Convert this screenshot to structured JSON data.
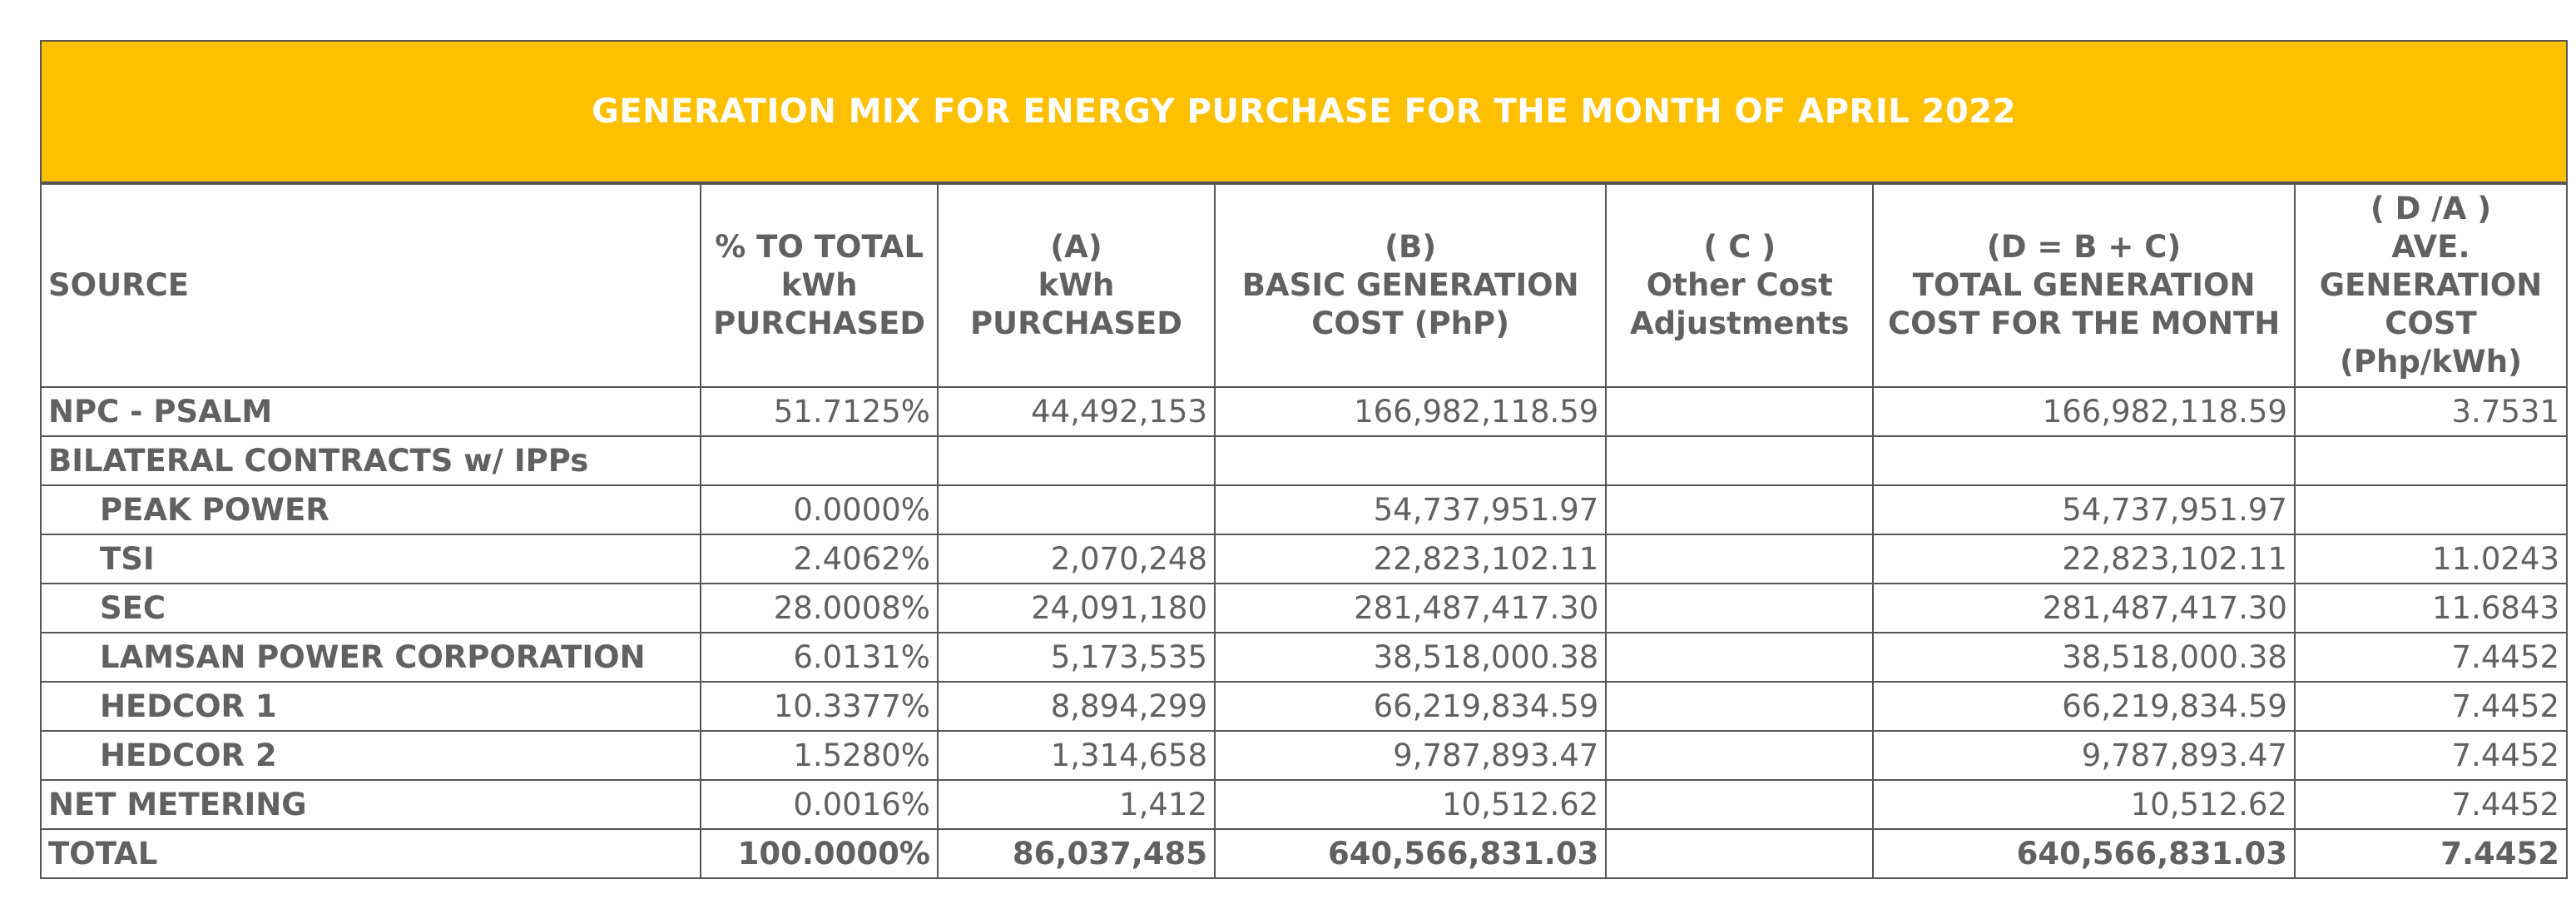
{
  "title": "GENERATION MIX FOR ENERGY PURCHASE FOR THE MONTH OF APRIL 2022",
  "headers": {
    "source": "SOURCE",
    "pct": [
      "% TO TOTAL",
      "kWh",
      "PURCHASED"
    ],
    "kwh": [
      "(A)",
      "kWh",
      "PURCHASED"
    ],
    "basic": [
      "(B)",
      "BASIC GENERATION",
      "COST (PhP)"
    ],
    "other": [
      "( C )",
      "Other Cost",
      "Adjustments"
    ],
    "total": [
      "(D = B + C)",
      "TOTAL GENERATION",
      "COST FOR THE MONTH"
    ],
    "ave": [
      "( D /A )",
      "AVE.",
      "GENERATION",
      "COST",
      "(Php/kWh)"
    ]
  },
  "rows": [
    {
      "source": "NPC - PSALM",
      "pct": "51.7125%",
      "kwh": "44,492,153",
      "basic": "166,982,118.59",
      "other": "",
      "total": "166,982,118.59",
      "ave": "3.7531"
    },
    {
      "source": "BILATERAL CONTRACTS w/ IPPs",
      "pct": "",
      "kwh": "",
      "basic": "",
      "other": "",
      "total": "",
      "ave": ""
    },
    {
      "source": "PEAK POWER",
      "pct": "0.0000%",
      "kwh": "",
      "basic": "54,737,951.97",
      "other": "",
      "total": "54,737,951.97",
      "ave": ""
    },
    {
      "source": "TSI",
      "pct": "2.4062%",
      "kwh": "2,070,248",
      "basic": "22,823,102.11",
      "other": "",
      "total": "22,823,102.11",
      "ave": "11.0243"
    },
    {
      "source": "SEC",
      "pct": "28.0008%",
      "kwh": "24,091,180",
      "basic": "281,487,417.30",
      "other": "",
      "total": "281,487,417.30",
      "ave": "11.6843"
    },
    {
      "source": "LAMSAN POWER CORPORATION",
      "pct": "6.0131%",
      "kwh": "5,173,535",
      "basic": "38,518,000.38",
      "other": "",
      "total": "38,518,000.38",
      "ave": "7.4452"
    },
    {
      "source": "HEDCOR 1",
      "pct": "10.3377%",
      "kwh": "8,894,299",
      "basic": "66,219,834.59",
      "other": "",
      "total": "66,219,834.59",
      "ave": "7.4452"
    },
    {
      "source": "HEDCOR 2",
      "pct": "1.5280%",
      "kwh": "1,314,658",
      "basic": "9,787,893.47",
      "other": "",
      "total": "9,787,893.47",
      "ave": "7.4452"
    },
    {
      "source": "NET METERING",
      "pct": "0.0016%",
      "kwh": "1,412",
      "basic": "10,512.62",
      "other": "",
      "total": "10,512.62",
      "ave": "7.4452"
    }
  ],
  "total_row": {
    "source": "TOTAL",
    "pct": "100.0000%",
    "kwh": "86,037,485",
    "basic": "640,566,831.03",
    "other": "",
    "total": "640,566,831.03",
    "ave": "7.4452"
  },
  "colors": {
    "title_bg": "#FFC000",
    "title_text": "#FFFFFF",
    "text": "#616161",
    "border": "#555555"
  }
}
